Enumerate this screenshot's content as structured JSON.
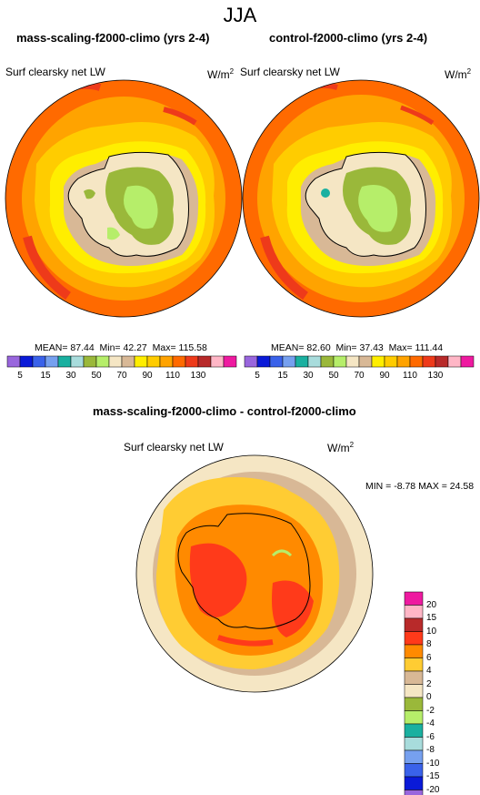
{
  "title": "JJA",
  "panels": [
    {
      "title": "mass-scaling-f2000-climo (yrs 2-4)",
      "variable": "Surf clearsky net LW",
      "units_base": "W/m",
      "units_exp": "2",
      "mean_label": "MEAN=",
      "mean": "87.44",
      "min_label": "Min=",
      "min": "42.27",
      "max_label": "Max=",
      "max": "115.58"
    },
    {
      "title": "control-f2000-climo (yrs 2-4)",
      "variable": "Surf clearsky net LW",
      "units_base": "W/m",
      "units_exp": "2",
      "mean_label": "MEAN=",
      "mean": "82.60",
      "min_label": "Min=",
      "min": "37.43",
      "max_label": "Max=",
      "max": "111.44"
    }
  ],
  "colorbar_top": {
    "colors": [
      "#9966dd",
      "#0a1ad8",
      "#3a62ea",
      "#76a0ef",
      "#1ab0a0",
      "#a8dcdc",
      "#9ab83a",
      "#b6ee6a",
      "#f5e6c4",
      "#d8b896",
      "#ffee00",
      "#ffcc00",
      "#ffa300",
      "#ff6a00",
      "#ee3a1a",
      "#b82a2a",
      "#ffb6c6",
      "#ee1aa0"
    ],
    "tick_labels": [
      "5",
      "15",
      "30",
      "50",
      "70",
      "90",
      "110",
      "130"
    ]
  },
  "diff": {
    "title": "mass-scaling-f2000-climo - control-f2000-climo",
    "variable": "Surf clearsky net LW",
    "units_base": "W/m",
    "units_exp": "2",
    "minmax_text": "MIN = -8.78 MAX = 24.58"
  },
  "colorbar_diff": {
    "colors": [
      "#ee1aa0",
      "#ffb6c6",
      "#b82a2a",
      "#ff3a1a",
      "#ff8a00",
      "#ffcc33",
      "#d8b896",
      "#f5e6c4",
      "#9ab83a",
      "#b6ee6a",
      "#1ab0a0",
      "#a8dcdc",
      "#76a0ef",
      "#3a62ea",
      "#0a1ad8",
      "#9966dd"
    ],
    "tick_labels": [
      "20",
      "15",
      "10",
      "8",
      "6",
      "4",
      "2",
      "0",
      "-2",
      "-4",
      "-6",
      "-8",
      "-10",
      "-15",
      "-20"
    ]
  }
}
